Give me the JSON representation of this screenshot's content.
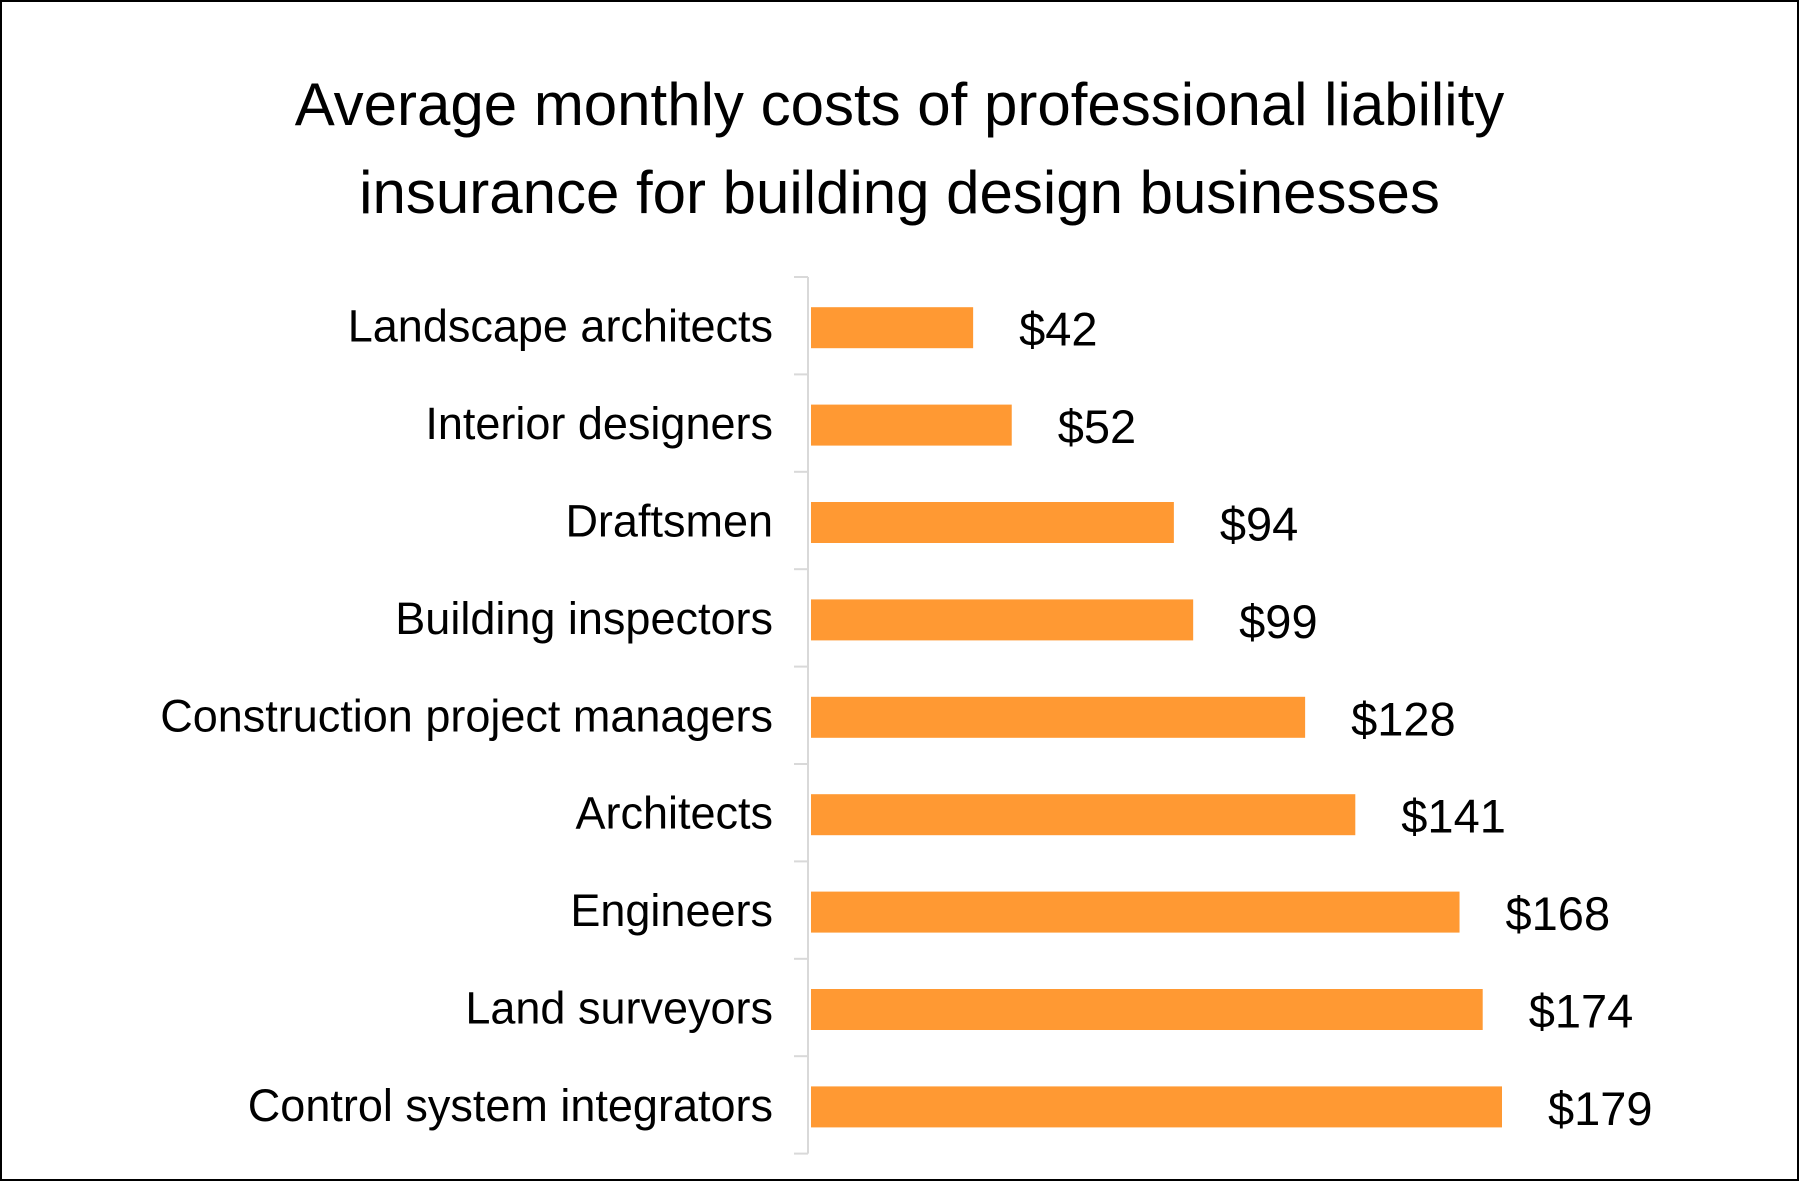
{
  "chart_data": {
    "type": "bar",
    "orientation": "horizontal",
    "title_lines": [
      "Average monthly costs of professional liability",
      "insurance for building design businesses"
    ],
    "categories": [
      "Landscape architects",
      "Interior designers",
      "Draftsmen",
      "Building inspectors",
      "Construction project managers",
      "Architects",
      "Engineers",
      "Land surveyors",
      "Control system integrators"
    ],
    "values": [
      42,
      52,
      94,
      99,
      128,
      141,
      168,
      174,
      179
    ],
    "data_labels": [
      "$42",
      "$52",
      "$94",
      "$99",
      "$128",
      "$141",
      "$168",
      "$174",
      "$179"
    ],
    "xlabel": "",
    "ylabel": "",
    "xlim": [
      0,
      179
    ],
    "grid": false,
    "legend": "none",
    "bar_color": "#FF9933"
  }
}
